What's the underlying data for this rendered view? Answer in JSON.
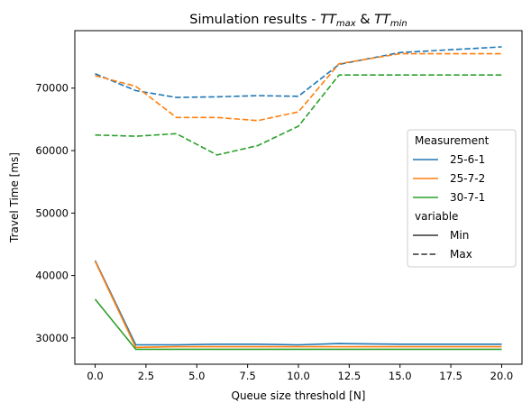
{
  "chart_data": {
    "type": "line",
    "title": "Simulation results - ",
    "title_math": {
      "first": {
        "base": "TT",
        "sub": "max"
      },
      "joiner": " & ",
      "second": {
        "base": "TT",
        "sub": "min"
      }
    },
    "xlabel": "Queue size threshold [N]",
    "ylabel": "Travel Time [ms]",
    "xlim": [
      -1,
      21
    ],
    "ylim": [
      25800,
      79200
    ],
    "x_ticks": [
      0.0,
      2.5,
      5.0,
      7.5,
      10.0,
      12.5,
      15.0,
      17.5,
      20.0
    ],
    "x_tick_labels": [
      "0.0",
      "2.5",
      "5.0",
      "7.5",
      "10.0",
      "12.5",
      "15.0",
      "17.5",
      "20.0"
    ],
    "y_ticks": [
      30000,
      40000,
      50000,
      60000,
      70000
    ],
    "y_tick_labels": [
      "30000",
      "40000",
      "50000",
      "60000",
      "70000"
    ],
    "grid": false,
    "legend": {
      "placement": "center-right",
      "hue_title": "Measurement",
      "style_title": "variable",
      "hue_entries": [
        {
          "label": "25-6-1",
          "color": "#1f77b4"
        },
        {
          "label": "25-7-2",
          "color": "#ff7f0e"
        },
        {
          "label": "30-7-1",
          "color": "#2ca02c"
        }
      ],
      "style_entries": [
        {
          "label": "Min",
          "dash": "solid"
        },
        {
          "label": "Max",
          "dash": "dashed"
        }
      ]
    },
    "x": [
      0,
      2,
      4,
      6,
      8,
      10,
      12,
      15,
      20
    ],
    "series": [
      {
        "measurement": "25-6-1",
        "variable": "Max",
        "color": "#1f77b4",
        "dash": "dashed",
        "values": [
          72300,
          69600,
          68500,
          68600,
          68800,
          68700,
          73800,
          75700,
          76600
        ]
      },
      {
        "measurement": "25-7-2",
        "variable": "Max",
        "color": "#ff7f0e",
        "dash": "dashed",
        "values": [
          72000,
          70300,
          65300,
          65300,
          64800,
          66200,
          73900,
          75500,
          75500
        ]
      },
      {
        "measurement": "30-7-1",
        "variable": "Max",
        "color": "#2ca02c",
        "dash": "dashed",
        "values": [
          62500,
          62300,
          62700,
          59300,
          60800,
          63900,
          72100,
          72100,
          72100
        ]
      },
      {
        "measurement": "25-6-1",
        "variable": "Min",
        "color": "#1f77b4",
        "dash": "solid",
        "values": [
          42400,
          28900,
          28900,
          29000,
          29000,
          28900,
          29100,
          29000,
          29000
        ]
      },
      {
        "measurement": "25-7-2",
        "variable": "Min",
        "color": "#ff7f0e",
        "dash": "solid",
        "values": [
          42300,
          28500,
          28600,
          28600,
          28600,
          28600,
          28600,
          28600,
          28600
        ]
      },
      {
        "measurement": "30-7-1",
        "variable": "Min",
        "color": "#2ca02c",
        "dash": "solid",
        "values": [
          36200,
          28200,
          28200,
          28200,
          28200,
          28200,
          28200,
          28200,
          28200
        ]
      }
    ]
  }
}
